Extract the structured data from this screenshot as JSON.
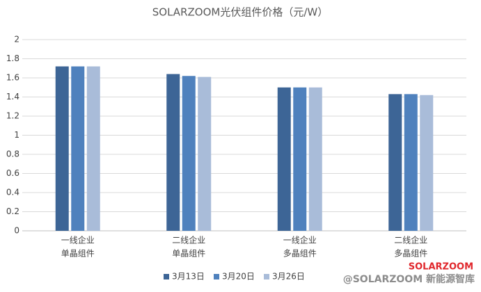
{
  "chart_data": {
    "type": "bar",
    "title": "SOLARZOOM光伏组件价格（元/W）",
    "categories": [
      [
        "一线企业",
        "单晶组件"
      ],
      [
        "二线企业",
        "单晶组件"
      ],
      [
        "一线企业",
        "多晶组件"
      ],
      [
        "二线企业",
        "多晶组件"
      ]
    ],
    "series": [
      {
        "name": "3月13日",
        "color": "#3d6596",
        "values": [
          1.72,
          1.64,
          1.5,
          1.43
        ]
      },
      {
        "name": "3月20日",
        "color": "#4f81bd",
        "values": [
          1.72,
          1.62,
          1.5,
          1.43
        ]
      },
      {
        "name": "3月26日",
        "color": "#a9bcd9",
        "values": [
          1.72,
          1.61,
          1.5,
          1.42
        ]
      }
    ],
    "ylim": [
      0,
      2
    ],
    "yticks": [
      0,
      0.2,
      0.4,
      0.6,
      0.8,
      1,
      1.2,
      1.4,
      1.6,
      1.8,
      2
    ],
    "grid": true,
    "legend": "bottom"
  },
  "watermark": {
    "brand": "SOLARZOOM",
    "source": "@SOLARZOOM 新能源智库"
  }
}
